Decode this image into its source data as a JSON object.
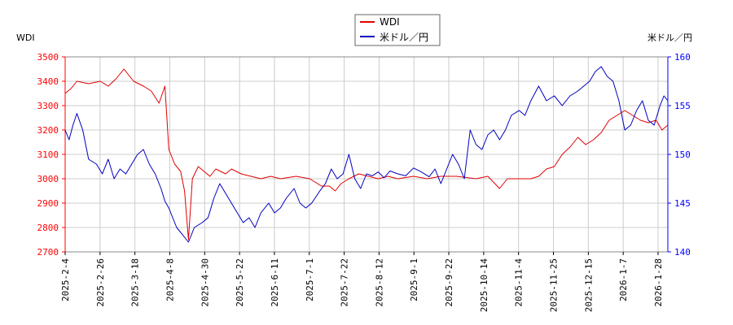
{
  "chart_data": {
    "type": "line",
    "left_unit": "WDI",
    "right_unit": "米ドル／円",
    "x_tick_labels": [
      "2025-2-4",
      "2025-2-26",
      "2025-3-18",
      "2025-4-8",
      "2025-4-30",
      "2025-5-22",
      "2025-6-11",
      "2025-7-1",
      "2025-7-22",
      "2025-8-12",
      "2025-9-1",
      "2025-9-22",
      "2025-10-14",
      "2025-11-4",
      "2025-11-25",
      "2025-12-15",
      "2026-1-7",
      "2026-1-28"
    ],
    "y_left": {
      "ticks": [
        2700,
        2800,
        2900,
        3000,
        3100,
        3200,
        3300,
        3400,
        3500
      ],
      "min": 2700,
      "max": 3500
    },
    "y_right": {
      "ticks": [
        140,
        145,
        150,
        155,
        160
      ],
      "min": 140,
      "max": 160
    },
    "grid": true,
    "legend_position": "top-center",
    "series": [
      {
        "name": "WDI",
        "color": "#e00000",
        "axis": "left",
        "points": [
          [
            0,
            3350
          ],
          [
            3,
            3370
          ],
          [
            6,
            3400
          ],
          [
            12,
            3390
          ],
          [
            18,
            3400
          ],
          [
            22,
            3380
          ],
          [
            26,
            3410
          ],
          [
            30,
            3450
          ],
          [
            35,
            3400
          ],
          [
            40,
            3380
          ],
          [
            44,
            3360
          ],
          [
            48,
            3310
          ],
          [
            51,
            3380
          ],
          [
            53,
            3120
          ],
          [
            56,
            3060
          ],
          [
            59,
            3030
          ],
          [
            61,
            2950
          ],
          [
            63,
            2750
          ],
          [
            65,
            3000
          ],
          [
            68,
            3050
          ],
          [
            71,
            3030
          ],
          [
            74,
            3010
          ],
          [
            77,
            3040
          ],
          [
            82,
            3020
          ],
          [
            85,
            3040
          ],
          [
            90,
            3020
          ],
          [
            95,
            3010
          ],
          [
            100,
            3000
          ],
          [
            105,
            3010
          ],
          [
            110,
            3000
          ],
          [
            118,
            3010
          ],
          [
            125,
            3000
          ],
          [
            131,
            2970
          ],
          [
            135,
            2970
          ],
          [
            138,
            2950
          ],
          [
            141,
            2980
          ],
          [
            145,
            3000
          ],
          [
            150,
            3020
          ],
          [
            155,
            3010
          ],
          [
            160,
            3000
          ],
          [
            165,
            3010
          ],
          [
            170,
            3000
          ],
          [
            178,
            3010
          ],
          [
            185,
            3000
          ],
          [
            192,
            3010
          ],
          [
            200,
            3010
          ],
          [
            210,
            3000
          ],
          [
            216,
            3010
          ],
          [
            222,
            2960
          ],
          [
            226,
            3000
          ],
          [
            232,
            3000
          ],
          [
            238,
            3000
          ],
          [
            242,
            3010
          ],
          [
            246,
            3040
          ],
          [
            250,
            3050
          ],
          [
            254,
            3100
          ],
          [
            258,
            3130
          ],
          [
            262,
            3170
          ],
          [
            266,
            3140
          ],
          [
            270,
            3160
          ],
          [
            274,
            3190
          ],
          [
            278,
            3240
          ],
          [
            282,
            3260
          ],
          [
            286,
            3280
          ],
          [
            290,
            3260
          ],
          [
            294,
            3240
          ],
          [
            298,
            3230
          ],
          [
            302,
            3240
          ],
          [
            305,
            3200
          ],
          [
            308,
            3220
          ]
        ]
      },
      {
        "name": "米ドル／円",
        "color": "#0000c0",
        "axis": "right",
        "points": [
          [
            0,
            152.5
          ],
          [
            2,
            151.5
          ],
          [
            4,
            153
          ],
          [
            6,
            154.2
          ],
          [
            9,
            152.5
          ],
          [
            12,
            149.5
          ],
          [
            16,
            149
          ],
          [
            19,
            148
          ],
          [
            22,
            149.5
          ],
          [
            25,
            147.5
          ],
          [
            28,
            148.5
          ],
          [
            31,
            148
          ],
          [
            34,
            149
          ],
          [
            37,
            150
          ],
          [
            40,
            150.5
          ],
          [
            43,
            149
          ],
          [
            46,
            148
          ],
          [
            49,
            146.5
          ],
          [
            51,
            145.2
          ],
          [
            53,
            144.5
          ],
          [
            55,
            143.5
          ],
          [
            57,
            142.5
          ],
          [
            59,
            142
          ],
          [
            61,
            141.5
          ],
          [
            63,
            141
          ],
          [
            66,
            142.5
          ],
          [
            70,
            143
          ],
          [
            73,
            143.5
          ],
          [
            76,
            145.5
          ],
          [
            79,
            147
          ],
          [
            82,
            146
          ],
          [
            85,
            145
          ],
          [
            88,
            144
          ],
          [
            91,
            143
          ],
          [
            94,
            143.5
          ],
          [
            97,
            142.5
          ],
          [
            100,
            144
          ],
          [
            104,
            145
          ],
          [
            107,
            144
          ],
          [
            110,
            144.5
          ],
          [
            113,
            145.5
          ],
          [
            117,
            146.5
          ],
          [
            120,
            145
          ],
          [
            123,
            144.5
          ],
          [
            126,
            145
          ],
          [
            130,
            146.2
          ],
          [
            133,
            147
          ],
          [
            136,
            148.5
          ],
          [
            139,
            147.5
          ],
          [
            142,
            148
          ],
          [
            145,
            150
          ],
          [
            148,
            147.5
          ],
          [
            151,
            146.5
          ],
          [
            154,
            148
          ],
          [
            157,
            147.8
          ],
          [
            160,
            148.2
          ],
          [
            163,
            147.6
          ],
          [
            166,
            148.3
          ],
          [
            170,
            148
          ],
          [
            174,
            147.8
          ],
          [
            178,
            148.6
          ],
          [
            182,
            148.2
          ],
          [
            186,
            147.7
          ],
          [
            189,
            148.5
          ],
          [
            192,
            147
          ],
          [
            195,
            148.5
          ],
          [
            198,
            150
          ],
          [
            201,
            149
          ],
          [
            204,
            147.5
          ],
          [
            207,
            152.5
          ],
          [
            210,
            151
          ],
          [
            213,
            150.5
          ],
          [
            216,
            152
          ],
          [
            219,
            152.5
          ],
          [
            222,
            151.5
          ],
          [
            225,
            152.5
          ],
          [
            228,
            154
          ],
          [
            232,
            154.5
          ],
          [
            235,
            154
          ],
          [
            238,
            155.5
          ],
          [
            242,
            157
          ],
          [
            246,
            155.5
          ],
          [
            250,
            156
          ],
          [
            254,
            155
          ],
          [
            258,
            156
          ],
          [
            262,
            156.5
          ],
          [
            265,
            157
          ],
          [
            268,
            157.5
          ],
          [
            271,
            158.5
          ],
          [
            274,
            159
          ],
          [
            277,
            158
          ],
          [
            280,
            157.5
          ],
          [
            283,
            155.5
          ],
          [
            286,
            152.5
          ],
          [
            289,
            153
          ],
          [
            292,
            154.5
          ],
          [
            295,
            155.5
          ],
          [
            298,
            153.5
          ],
          [
            301,
            153
          ],
          [
            304,
            155
          ],
          [
            306,
            156
          ],
          [
            308,
            155.5
          ]
        ]
      }
    ]
  },
  "legend": {
    "items": [
      {
        "name": "WDI",
        "color": "#e00000"
      },
      {
        "name": "米ドル／円",
        "color": "#0000c0"
      }
    ]
  },
  "colors": {
    "left_axis": "#ff0000",
    "right_axis": "#0000ff",
    "grid": "#cccccc",
    "frame": "#888888"
  }
}
